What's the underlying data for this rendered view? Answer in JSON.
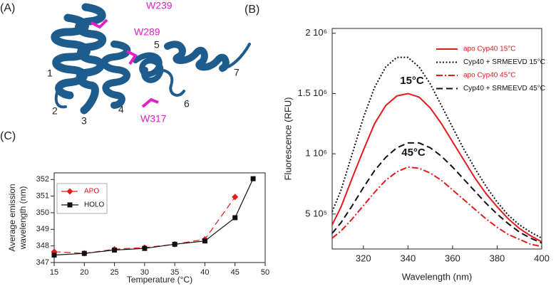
{
  "structure": {
    "panel_label": "(A)",
    "residues": [
      "W239",
      "W289",
      "W317"
    ],
    "helices": [
      "1",
      "2",
      "3",
      "4",
      "5",
      "6",
      "7"
    ]
  },
  "chart_data": [
    {
      "type": "line",
      "panel_label": "(B)",
      "xlabel": "Wavelength (nm)",
      "ylabel": "Fluorescence (RFU)",
      "xlim": [
        306,
        400
      ],
      "xticks": [
        320,
        340,
        360,
        380,
        400
      ],
      "ylim": [
        210000,
        2040000
      ],
      "yticks": [
        {
          "value": 500000,
          "label": "5 10⁵"
        },
        {
          "value": 1000000,
          "label": "1 10⁶"
        },
        {
          "value": 1500000,
          "label": "1.5 10⁶"
        },
        {
          "value": 2000000,
          "label": "2 10⁶"
        }
      ],
      "legend": "upper right",
      "annotations": [
        "15°C",
        "45°C"
      ],
      "x": [
        306,
        310,
        315,
        320,
        325,
        330,
        335,
        340,
        345,
        350,
        355,
        360,
        365,
        370,
        375,
        380,
        385,
        390,
        395,
        400
      ],
      "series": [
        {
          "name": "apo Cyp40 15°C",
          "color": "#e41a1c",
          "style": "solid",
          "values": [
            410000,
            560000,
            800000,
            1030000,
            1250000,
            1400000,
            1480000,
            1500000,
            1470000,
            1380000,
            1250000,
            1100000,
            950000,
            800000,
            670000,
            560000,
            460000,
            380000,
            320000,
            270000
          ]
        },
        {
          "name": "Cyp40 + SRMEEVD 15°C",
          "color": "#111111",
          "style": "dotted",
          "values": [
            520000,
            700000,
            1000000,
            1300000,
            1550000,
            1720000,
            1800000,
            1800000,
            1720000,
            1580000,
            1400000,
            1220000,
            1040000,
            880000,
            730000,
            600000,
            490000,
            410000,
            350000,
            300000
          ]
        },
        {
          "name": "apo Cyp40 45°C",
          "color": "#e41a1c",
          "style": "dashdot",
          "values": [
            300000,
            360000,
            460000,
            570000,
            680000,
            780000,
            850000,
            890000,
            880000,
            840000,
            780000,
            700000,
            620000,
            540000,
            460000,
            390000,
            330000,
            290000,
            250000,
            230000
          ]
        },
        {
          "name": "Cyp40 + SRMEEVD 45°C",
          "color": "#111111",
          "style": "dashed",
          "values": [
            340000,
            430000,
            570000,
            720000,
            860000,
            970000,
            1050000,
            1090000,
            1090000,
            1050000,
            980000,
            890000,
            790000,
            690000,
            590000,
            500000,
            420000,
            350000,
            300000,
            260000
          ]
        }
      ]
    },
    {
      "type": "line",
      "panel_label": "(C)",
      "xlabel": "Temperature (°C)",
      "ylabel": [
        "Average emission",
        "wavelength (nm)"
      ],
      "xlim": [
        15,
        50
      ],
      "xticks": [
        15,
        20,
        25,
        30,
        35,
        40,
        45,
        50
      ],
      "ylim": [
        347,
        352.4
      ],
      "yticks": [
        347,
        348,
        349,
        350,
        351,
        352
      ],
      "legend": "upper left",
      "series": [
        {
          "name": "APO",
          "color": "#e41a1c",
          "style": "dashed",
          "marker": "diamond",
          "x": [
            15,
            20,
            25,
            30,
            35,
            40,
            45
          ],
          "values": [
            347.65,
            347.55,
            347.8,
            347.9,
            348.1,
            348.4,
            350.95
          ]
        },
        {
          "name": "HOLO",
          "color": "#111111",
          "style": "solid",
          "marker": "square",
          "x": [
            15,
            20,
            25,
            30,
            35,
            40,
            45,
            48
          ],
          "values": [
            347.45,
            347.55,
            347.75,
            347.85,
            348.1,
            348.3,
            349.7,
            352.05
          ]
        }
      ]
    }
  ]
}
